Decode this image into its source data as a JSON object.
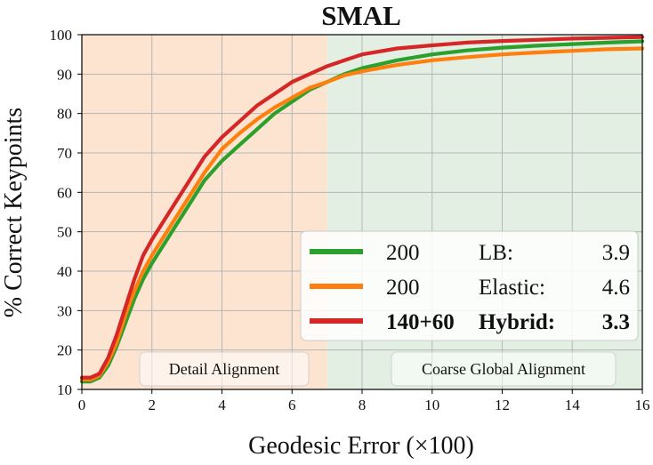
{
  "chart_data": {
    "type": "line",
    "title": "SMAL",
    "xlabel": "Geodesic Error (×100)",
    "ylabel": "% Correct Keypoints",
    "xlim": [
      0,
      16
    ],
    "ylim": [
      10,
      100
    ],
    "xticks": [
      0,
      2,
      4,
      6,
      8,
      10,
      12,
      14,
      16
    ],
    "yticks": [
      10,
      20,
      30,
      40,
      50,
      60,
      70,
      80,
      90,
      100
    ],
    "grid": true,
    "regions": [
      {
        "label": "Detail Alignment",
        "x_range": [
          0,
          7
        ],
        "color": "#fde4d0"
      },
      {
        "label": "Coarse Global Alignment",
        "x_range": [
          7,
          16
        ],
        "color": "#e3efe2"
      }
    ],
    "legend": {
      "position": "lower-right",
      "entries": [
        {
          "count": "200",
          "method": "LB:",
          "value": "3.9",
          "color": "#2ca02c",
          "bold": false
        },
        {
          "count": "200",
          "method": "Elastic:",
          "value": "4.6",
          "color": "#ff7f0e",
          "bold": false
        },
        {
          "count": "140+60",
          "method": "Hybrid:",
          "value": "3.3",
          "color": "#d62728",
          "bold": true
        }
      ]
    },
    "x": [
      0,
      0.25,
      0.5,
      0.75,
      1,
      1.25,
      1.5,
      1.75,
      2,
      2.5,
      3,
      3.5,
      4,
      4.5,
      5,
      5.5,
      6,
      6.5,
      7,
      7.5,
      8,
      9,
      10,
      11,
      12,
      13,
      14,
      15,
      16
    ],
    "series": [
      {
        "color": "#2ca02c",
        "values": [
          12,
          12,
          13,
          16,
          21,
          27,
          33,
          38,
          42,
          49,
          56,
          63,
          68,
          72,
          76,
          80,
          83,
          86,
          88,
          90,
          91.5,
          93.5,
          95,
          96,
          96.7,
          97.2,
          97.6,
          98,
          98.3
        ]
      },
      {
        "color": "#ff7f0e",
        "values": [
          12.5,
          12.5,
          13.5,
          17,
          22,
          29,
          35,
          40,
          44,
          51,
          58,
          65,
          71,
          75,
          78.5,
          81.5,
          84,
          86.5,
          88,
          89.7,
          90.7,
          92.3,
          93.5,
          94.3,
          95,
          95.5,
          95.9,
          96.3,
          96.5
        ]
      },
      {
        "color": "#d62728",
        "values": [
          13,
          13,
          14,
          18,
          24,
          31,
          38,
          44,
          48,
          55,
          62,
          69,
          74,
          78,
          82,
          85,
          88,
          90,
          92,
          93.5,
          95,
          96.5,
          97.3,
          98,
          98.4,
          98.7,
          99,
          99.2,
          99.4
        ]
      }
    ]
  }
}
